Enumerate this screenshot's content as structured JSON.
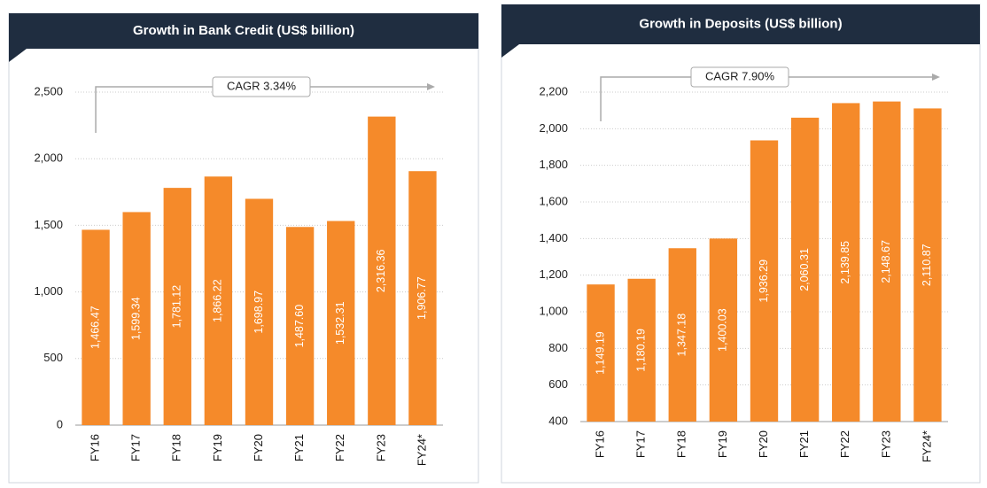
{
  "chart_data": [
    {
      "type": "bar",
      "title": "Growth in Bank Credit (US$ billion)",
      "annotation": "CAGR 3.34%",
      "categories": [
        "FY16",
        "FY17",
        "FY18",
        "FY19",
        "FY20",
        "FY21",
        "FY22",
        "FY23",
        "FY24*"
      ],
      "values": [
        1466.47,
        1599.34,
        1781.12,
        1866.22,
        1698.97,
        1487.6,
        1532.31,
        2316.36,
        1906.77
      ],
      "value_labels": [
        "1,466.47",
        "1,599.34",
        "1,781.12",
        "1,866.22",
        "1,698.97",
        "1,487.60",
        "1,532.31",
        "2,316.36",
        "1,906.77"
      ],
      "color": "#f58a2a",
      "ylim": [
        0,
        2500
      ],
      "yticks": [
        0,
        500,
        {
          "value": 1000,
          "label": "1,000"
        },
        {
          "value": 1500,
          "label": "1,500"
        },
        {
          "value": 2000,
          "label": "2,000"
        },
        {
          "value": 2500,
          "label": "2,500"
        }
      ],
      "grid": true
    },
    {
      "type": "bar",
      "title": "Growth in Deposits (US$ billion)",
      "annotation": "CAGR 7.90%",
      "categories": [
        "FY16",
        "FY17",
        "FY18",
        "FY19",
        "FY20",
        "FY21",
        "FY22",
        "FY23",
        "FY24*"
      ],
      "values": [
        1149.19,
        1180.19,
        1347.18,
        1400.03,
        1936.29,
        2060.31,
        2139.85,
        2148.67,
        2110.87
      ],
      "value_labels": [
        "1,149.19",
        "1,180.19",
        "1,347.18",
        "1,400.03",
        "1,936.29",
        "2,060.31",
        "2,139.85",
        "2,148.67",
        "2,110.87"
      ],
      "color": "#f58a2a",
      "ylim": [
        400,
        2200
      ],
      "yticks": [
        400,
        600,
        800,
        {
          "value": 1000,
          "label": "1,000"
        },
        {
          "value": 1200,
          "label": "1,200"
        },
        {
          "value": 1400,
          "label": "1,400"
        },
        {
          "value": 1600,
          "label": "1,600"
        },
        {
          "value": 1800,
          "label": "1,800"
        },
        {
          "value": 2000,
          "label": "2,000"
        },
        {
          "value": 2200,
          "label": "2,200"
        }
      ],
      "grid": true
    }
  ]
}
